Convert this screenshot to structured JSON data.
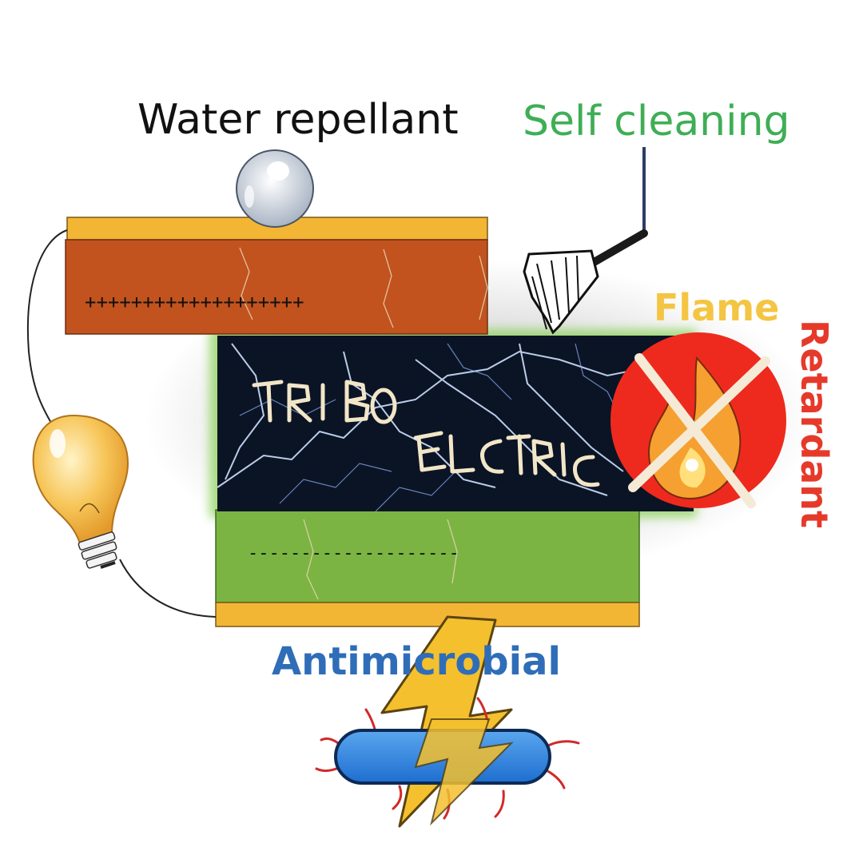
{
  "labels": {
    "water_repellant": "Water repellant",
    "self_cleaning": "Self cleaning",
    "flame": "Flame",
    "retardant": "Retardant",
    "antimicrobial": "Antimicrobial"
  },
  "charges": {
    "positive_signs": "+++++++++++++++++++",
    "negative_signs": "--------------------"
  },
  "central_logo_text": "TRIBOELECTRIC",
  "icons": [
    "water-droplet-icon",
    "broom-icon",
    "no-fire-icon",
    "light-bulb-icon",
    "lightning-bolt-icon",
    "bacterium-icon"
  ],
  "colors": {
    "water_repellant": "#111111",
    "self_cleaning": "#3fae55",
    "flame": "#f4c542",
    "retardant": "#e53a2a",
    "antimicrobial": "#2f6db8",
    "top_layer": "#c2531e",
    "bottom_layer": "#7bb442",
    "electrode": "#f3b634",
    "spark_panel": "#0b1424"
  }
}
